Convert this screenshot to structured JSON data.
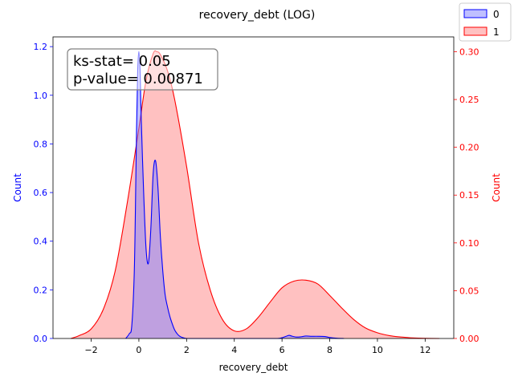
{
  "chart_data": {
    "type": "area",
    "title": "recovery_debt (LOG)",
    "xlabel": "recovery_debt",
    "ylabel_left": "Count",
    "ylabel_right": "Count",
    "xlim": [
      -3.6,
      13.2
    ],
    "ylim_left": [
      0,
      1.24
    ],
    "ylim_right": [
      0,
      0.3155
    ],
    "x_ticks": [
      -2,
      0,
      2,
      4,
      6,
      8,
      10,
      12
    ],
    "x_tick_labels": [
      "−2",
      "0",
      "2",
      "4",
      "6",
      "8",
      "10",
      "12"
    ],
    "y_ticks_left": [
      0.0,
      0.2,
      0.4,
      0.6,
      0.8,
      1.0,
      1.2
    ],
    "y_tick_labels_left": [
      "0.0",
      "0.2",
      "0.4",
      "0.6",
      "0.8",
      "1.0",
      "1.2"
    ],
    "y_ticks_right": [
      0.0,
      0.05,
      0.1,
      0.15,
      0.2,
      0.25,
      0.3
    ],
    "y_tick_labels_right": [
      "0.00",
      "0.05",
      "0.10",
      "0.15",
      "0.20",
      "0.25",
      "0.30"
    ],
    "legend_placement": "top-right",
    "grid": false,
    "annotation_lines": [
      "ks-stat= 0.05",
      "p-value= 0.00871"
    ],
    "series": [
      {
        "name": "0",
        "axis": "left",
        "color": "#0000ff",
        "fill": "#7f7fff",
        "x": [
          -0.55,
          -0.4,
          -0.3,
          -0.2,
          -0.15,
          -0.1,
          -0.05,
          0.0,
          0.05,
          0.1,
          0.2,
          0.3,
          0.4,
          0.5,
          0.6,
          0.7,
          0.8,
          0.9,
          1.0,
          1.1,
          1.2,
          1.3,
          1.4,
          1.5,
          1.6,
          1.7,
          1.8,
          1.9,
          2.0,
          2.5,
          3,
          4,
          5,
          5.8,
          6.0,
          6.2,
          6.3,
          6.4,
          6.6,
          6.8,
          7.0,
          7.2,
          7.5,
          7.8,
          8.0,
          8.3,
          8.6
        ],
        "y": [
          0.0,
          0.02,
          0.05,
          0.25,
          0.5,
          0.85,
          1.1,
          1.18,
          1.1,
          0.9,
          0.6,
          0.37,
          0.31,
          0.45,
          0.68,
          0.73,
          0.62,
          0.42,
          0.28,
          0.18,
          0.13,
          0.09,
          0.06,
          0.035,
          0.02,
          0.01,
          0.005,
          0.002,
          0.0,
          0.0,
          0.0,
          0.0,
          0.0,
          0.0,
          0.003,
          0.01,
          0.013,
          0.01,
          0.006,
          0.007,
          0.01,
          0.009,
          0.009,
          0.008,
          0.004,
          0.001,
          0.0
        ]
      },
      {
        "name": "1",
        "axis": "right",
        "color": "#ff0000",
        "fill": "#ff9f9f",
        "x": [
          -2.85,
          -2.5,
          -2.0,
          -1.5,
          -1.0,
          -0.5,
          0.0,
          0.3,
          0.6,
          0.75,
          0.9,
          1.2,
          1.5,
          2.0,
          2.5,
          3.0,
          3.5,
          4.0,
          4.5,
          5.0,
          5.5,
          6.0,
          6.5,
          7.0,
          7.5,
          8.0,
          8.5,
          9.0,
          9.5,
          10.0,
          10.5,
          11.0,
          11.5,
          12.0,
          12.6
        ],
        "y": [
          0.0,
          0.003,
          0.01,
          0.03,
          0.07,
          0.14,
          0.22,
          0.27,
          0.298,
          0.3,
          0.297,
          0.28,
          0.25,
          0.18,
          0.1,
          0.05,
          0.02,
          0.008,
          0.01,
          0.022,
          0.038,
          0.053,
          0.06,
          0.061,
          0.057,
          0.045,
          0.032,
          0.02,
          0.011,
          0.006,
          0.003,
          0.0015,
          0.0006,
          0.0002,
          0.0
        ]
      }
    ]
  }
}
